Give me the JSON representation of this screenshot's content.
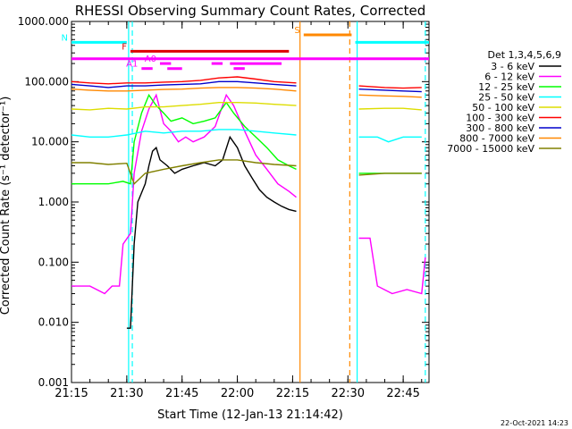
{
  "chart_data": {
    "type": "line",
    "title": "RHESSI Observing Summary Count Rates, Corrected",
    "xlabel": "Start Time (12-Jan-13 21:14:42)",
    "ylabel": "Corrected Count Rate (s⁻¹ detector⁻¹)",
    "yscale": "log",
    "xlim": [
      "21:15",
      "22:52"
    ],
    "ylim": [
      0.001,
      1000
    ],
    "xticks": [
      "21:15",
      "21:30",
      "21:45",
      "22:00",
      "22:15",
      "22:30",
      "22:45"
    ],
    "yticks": [
      "0.001",
      "0.010",
      "0.100",
      "1.000",
      "10.000",
      "100.000",
      "1000.000"
    ],
    "legend": {
      "title": "Det 1,3,4,5,6,9",
      "placement": "right"
    },
    "series": [
      {
        "name": "3 - 6 keV",
        "color": "#000000",
        "points": [
          [
            "21:30",
            0.008
          ],
          [
            "21:31",
            0.008
          ],
          [
            "21:32",
            0.2
          ],
          [
            "21:33",
            1.0
          ],
          [
            "21:35",
            2.0
          ],
          [
            "21:36",
            4.0
          ],
          [
            "21:37",
            7.0
          ],
          [
            "21:38",
            8.0
          ],
          [
            "21:39",
            5.0
          ],
          [
            "21:41",
            4.0
          ],
          [
            "21:43",
            3.0
          ],
          [
            "21:45",
            3.5
          ],
          [
            "21:48",
            4.0
          ],
          [
            "21:51",
            4.5
          ],
          [
            "21:54",
            4.0
          ],
          [
            "21:56",
            5.0
          ],
          [
            "21:58",
            12.0
          ],
          [
            "22:00",
            8.0
          ],
          [
            "22:02",
            4.0
          ],
          [
            "22:04",
            2.5
          ],
          [
            "22:06",
            1.6
          ],
          [
            "22:08",
            1.2
          ],
          [
            "22:10",
            1.0
          ],
          [
            "22:12",
            0.85
          ],
          [
            "22:14",
            0.75
          ],
          [
            "22:16",
            0.7
          ]
        ]
      },
      {
        "name": "6 - 12 keV",
        "color": "#ff00ff",
        "points": [
          [
            "21:15",
            0.04
          ],
          [
            "21:20",
            0.04
          ],
          [
            "21:24",
            0.03
          ],
          [
            "21:26",
            0.04
          ],
          [
            "21:28",
            0.04
          ],
          [
            "21:29",
            0.2
          ],
          [
            "21:31",
            0.3
          ],
          [
            "21:32",
            3.0
          ],
          [
            "21:34",
            15.0
          ],
          [
            "21:36",
            35.0
          ],
          [
            "21:38",
            60.0
          ],
          [
            "21:40",
            20.0
          ],
          [
            "21:42",
            15.0
          ],
          [
            "21:44",
            10.0
          ],
          [
            "21:46",
            12.0
          ],
          [
            "21:48",
            10.0
          ],
          [
            "21:51",
            12.0
          ],
          [
            "21:54",
            18.0
          ],
          [
            "21:57",
            60.0
          ],
          [
            "21:59",
            40.0
          ],
          [
            "22:02",
            15.0
          ],
          [
            "22:05",
            6.0
          ],
          [
            "22:08",
            3.5
          ],
          [
            "22:11",
            2.0
          ],
          [
            "22:14",
            1.5
          ],
          [
            "22:16",
            1.2
          ],
          [
            "22:33",
            0.25
          ],
          [
            "22:36",
            0.25
          ],
          [
            "22:38",
            0.04
          ],
          [
            "22:42",
            0.03
          ],
          [
            "22:46",
            0.035
          ],
          [
            "22:50",
            0.03
          ],
          [
            "22:51",
            0.12
          ]
        ]
      },
      {
        "name": "12 - 25 keV",
        "color": "#00ff00",
        "points": [
          [
            "21:15",
            2.0
          ],
          [
            "21:20",
            2.0
          ],
          [
            "21:25",
            2.0
          ],
          [
            "21:29",
            2.2
          ],
          [
            "21:31",
            2.0
          ],
          [
            "21:32",
            10.0
          ],
          [
            "21:34",
            30.0
          ],
          [
            "21:36",
            60.0
          ],
          [
            "21:38",
            40.0
          ],
          [
            "21:40",
            30.0
          ],
          [
            "21:42",
            22.0
          ],
          [
            "21:45",
            25.0
          ],
          [
            "21:48",
            20.0
          ],
          [
            "21:51",
            22.0
          ],
          [
            "21:54",
            25.0
          ],
          [
            "21:57",
            45.0
          ],
          [
            "21:59",
            30.0
          ],
          [
            "22:02",
            18.0
          ],
          [
            "22:05",
            12.0
          ],
          [
            "22:08",
            8.0
          ],
          [
            "22:11",
            5.0
          ],
          [
            "22:14",
            4.0
          ],
          [
            "22:16",
            3.5
          ],
          [
            "22:33",
            3.0
          ],
          [
            "22:40",
            3.0
          ],
          [
            "22:45",
            3.0
          ],
          [
            "22:50",
            3.0
          ]
        ]
      },
      {
        "name": "25 - 50 keV",
        "color": "#00ffff",
        "points": [
          [
            "21:15",
            13.0
          ],
          [
            "21:20",
            12.0
          ],
          [
            "21:25",
            12.0
          ],
          [
            "21:30",
            13.0
          ],
          [
            "21:35",
            15.0
          ],
          [
            "21:40",
            14.0
          ],
          [
            "21:45",
            15.0
          ],
          [
            "21:50",
            15.0
          ],
          [
            "21:55",
            16.0
          ],
          [
            "22:00",
            16.0
          ],
          [
            "22:05",
            15.0
          ],
          [
            "22:10",
            14.0
          ],
          [
            "22:16",
            13.0
          ],
          [
            "22:33",
            12.0
          ],
          [
            "22:38",
            12.0
          ],
          [
            "22:41",
            10.0
          ],
          [
            "22:45",
            12.0
          ],
          [
            "22:50",
            12.0
          ]
        ]
      },
      {
        "name": "50 - 100 keV",
        "color": "#dddd00",
        "points": [
          [
            "21:15",
            35.0
          ],
          [
            "21:20",
            34.0
          ],
          [
            "21:25",
            36.0
          ],
          [
            "21:30",
            35.0
          ],
          [
            "21:35",
            38.0
          ],
          [
            "21:40",
            38.0
          ],
          [
            "21:45",
            40.0
          ],
          [
            "21:50",
            42.0
          ],
          [
            "21:55",
            45.0
          ],
          [
            "22:00",
            45.0
          ],
          [
            "22:05",
            44.0
          ],
          [
            "22:10",
            42.0
          ],
          [
            "22:16",
            40.0
          ],
          [
            "22:33",
            35.0
          ],
          [
            "22:40",
            36.0
          ],
          [
            "22:45",
            36.0
          ],
          [
            "22:50",
            34.0
          ]
        ]
      },
      {
        "name": "100 - 300 keV",
        "color": "#ff0000",
        "points": [
          [
            "21:15",
            100.0
          ],
          [
            "21:20",
            95.0
          ],
          [
            "21:25",
            92.0
          ],
          [
            "21:30",
            95.0
          ],
          [
            "21:35",
            95.0
          ],
          [
            "21:40",
            98.0
          ],
          [
            "21:45",
            100.0
          ],
          [
            "21:50",
            105.0
          ],
          [
            "21:55",
            115.0
          ],
          [
            "22:00",
            120.0
          ],
          [
            "22:05",
            110.0
          ],
          [
            "22:10",
            100.0
          ],
          [
            "22:16",
            95.0
          ],
          [
            "22:33",
            85.0
          ],
          [
            "22:40",
            80.0
          ],
          [
            "22:45",
            78.0
          ],
          [
            "22:50",
            80.0
          ]
        ]
      },
      {
        "name": "300 - 800 keV",
        "color": "#0000cc",
        "points": [
          [
            "21:15",
            90.0
          ],
          [
            "21:20",
            85.0
          ],
          [
            "21:25",
            80.0
          ],
          [
            "21:30",
            85.0
          ],
          [
            "21:35",
            85.0
          ],
          [
            "21:40",
            88.0
          ],
          [
            "21:45",
            90.0
          ],
          [
            "21:50",
            92.0
          ],
          [
            "21:55",
            100.0
          ],
          [
            "22:00",
            100.0
          ],
          [
            "22:05",
            95.0
          ],
          [
            "22:10",
            90.0
          ],
          [
            "22:16",
            85.0
          ],
          [
            "22:33",
            75.0
          ],
          [
            "22:40",
            72.0
          ],
          [
            "22:45",
            70.0
          ],
          [
            "22:50",
            68.0
          ]
        ]
      },
      {
        "name": "800 - 7000 keV",
        "color": "#ff8800",
        "points": [
          [
            "21:15",
            75.0
          ],
          [
            "21:20",
            72.0
          ],
          [
            "21:25",
            70.0
          ],
          [
            "21:30",
            70.0
          ],
          [
            "21:35",
            72.0
          ],
          [
            "21:40",
            74.0
          ],
          [
            "21:45",
            75.0
          ],
          [
            "21:50",
            78.0
          ],
          [
            "21:55",
            80.0
          ],
          [
            "22:00",
            80.0
          ],
          [
            "22:05",
            78.0
          ],
          [
            "22:10",
            75.0
          ],
          [
            "22:16",
            70.0
          ],
          [
            "22:33",
            60.0
          ],
          [
            "22:40",
            58.0
          ],
          [
            "22:45",
            57.0
          ],
          [
            "22:50",
            55.0
          ]
        ]
      },
      {
        "name": "7000 - 15000 keV",
        "color": "#808000",
        "points": [
          [
            "21:15",
            4.5
          ],
          [
            "21:20",
            4.5
          ],
          [
            "21:25",
            4.2
          ],
          [
            "21:30",
            4.4
          ],
          [
            "21:32",
            2.0
          ],
          [
            "21:35",
            3.0
          ],
          [
            "21:40",
            3.5
          ],
          [
            "21:45",
            4.0
          ],
          [
            "21:50",
            4.5
          ],
          [
            "21:55",
            5.0
          ],
          [
            "22:00",
            5.0
          ],
          [
            "22:05",
            4.5
          ],
          [
            "22:10",
            4.2
          ],
          [
            "22:16",
            4.0
          ],
          [
            "22:33",
            2.8
          ],
          [
            "22:40",
            3.0
          ],
          [
            "22:45",
            3.0
          ],
          [
            "22:50",
            3.0
          ]
        ]
      }
    ],
    "flag_bars": [
      {
        "label": "N",
        "color": "#00ffff",
        "level": 450,
        "segments": [
          [
            "21:15",
            "21:30"
          ],
          [
            "22:32",
            "22:52"
          ]
        ]
      },
      {
        "label": "S",
        "color": "#ff8800",
        "level": 600,
        "segments": [
          [
            "22:18",
            "22:31"
          ]
        ]
      },
      {
        "label": "F",
        "color": "#dd0000",
        "level": 320,
        "segments": [
          [
            "21:31",
            "22:14"
          ]
        ]
      },
      {
        "label": "",
        "color": "#ff00ff",
        "level": 240,
        "segments": [
          [
            "21:15",
            "22:52"
          ]
        ]
      },
      {
        "label": "A0",
        "color": "#ff00ff",
        "level": 200,
        "segments": [
          [
            "21:39",
            "21:42"
          ],
          [
            "21:53",
            "21:56"
          ],
          [
            "21:58",
            "22:12"
          ]
        ]
      },
      {
        "label": "A1",
        "color": "#ff00ff",
        "level": 165,
        "segments": [
          [
            "21:34",
            "21:37"
          ],
          [
            "21:41",
            "21:45"
          ],
          [
            "21:59",
            "22:02"
          ]
        ]
      }
    ],
    "vertical_lines": [
      {
        "time": "21:30.5",
        "color": "#00ffff",
        "style": "solid"
      },
      {
        "time": "21:31.5",
        "color": "#00ffff",
        "style": "dashed"
      },
      {
        "time": "22:17",
        "color": "#ff8800",
        "style": "solid"
      },
      {
        "time": "22:30.5",
        "color": "#ff8800",
        "style": "dashed"
      },
      {
        "time": "22:32.5",
        "color": "#00ffff",
        "style": "solid"
      },
      {
        "time": "22:51",
        "color": "#00ffff",
        "style": "dashed"
      }
    ],
    "footer_date": "22-Oct-2021 14:23"
  }
}
